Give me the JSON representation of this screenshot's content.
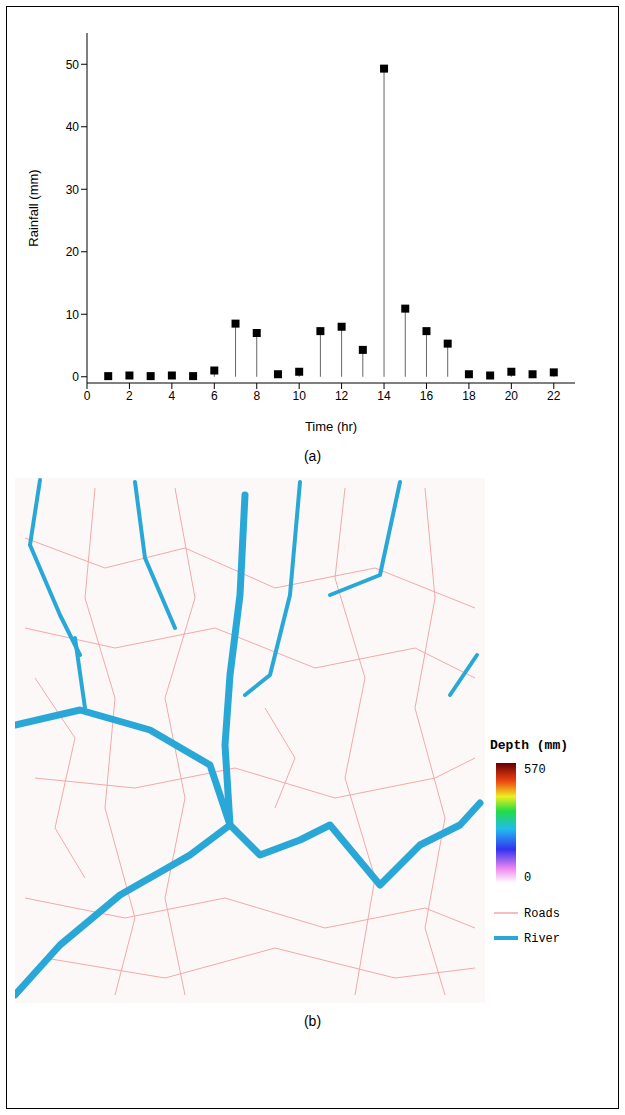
{
  "chart_data": [
    {
      "type": "stem",
      "caption": "(a)",
      "xlabel": "Time (hr)",
      "ylabel": "Rainfall (mm)",
      "x": [
        1,
        2,
        3,
        4,
        5,
        6,
        7,
        8,
        9,
        10,
        11,
        12,
        13,
        14,
        15,
        16,
        17,
        18,
        19,
        20,
        21,
        22
      ],
      "values": [
        0.1,
        0.2,
        0.1,
        0.2,
        0.1,
        1.0,
        8.5,
        7.0,
        0.4,
        0.8,
        7.3,
        8.0,
        4.3,
        49.3,
        10.9,
        7.3,
        5.3,
        0.4,
        0.2,
        0.8,
        0.4,
        0.7
      ],
      "color": "#000000",
      "marker": "square",
      "xlim": [
        0,
        23
      ],
      "xticks": [
        0,
        2,
        4,
        6,
        8,
        10,
        12,
        14,
        16,
        18,
        20,
        22
      ],
      "ylim": [
        -1,
        55
      ],
      "yticks": [
        0,
        10,
        20,
        30,
        40,
        50
      ]
    },
    {
      "type": "map",
      "caption": "(b)",
      "colorbar": {
        "label": "Depth (mm)",
        "range": [
          0,
          570
        ],
        "ticks": [
          0,
          570
        ]
      },
      "legend_items": [
        {
          "name": "Roads",
          "color": "#f2a9a9"
        },
        {
          "name": "River",
          "color": "#29a8d8"
        }
      ]
    }
  ]
}
